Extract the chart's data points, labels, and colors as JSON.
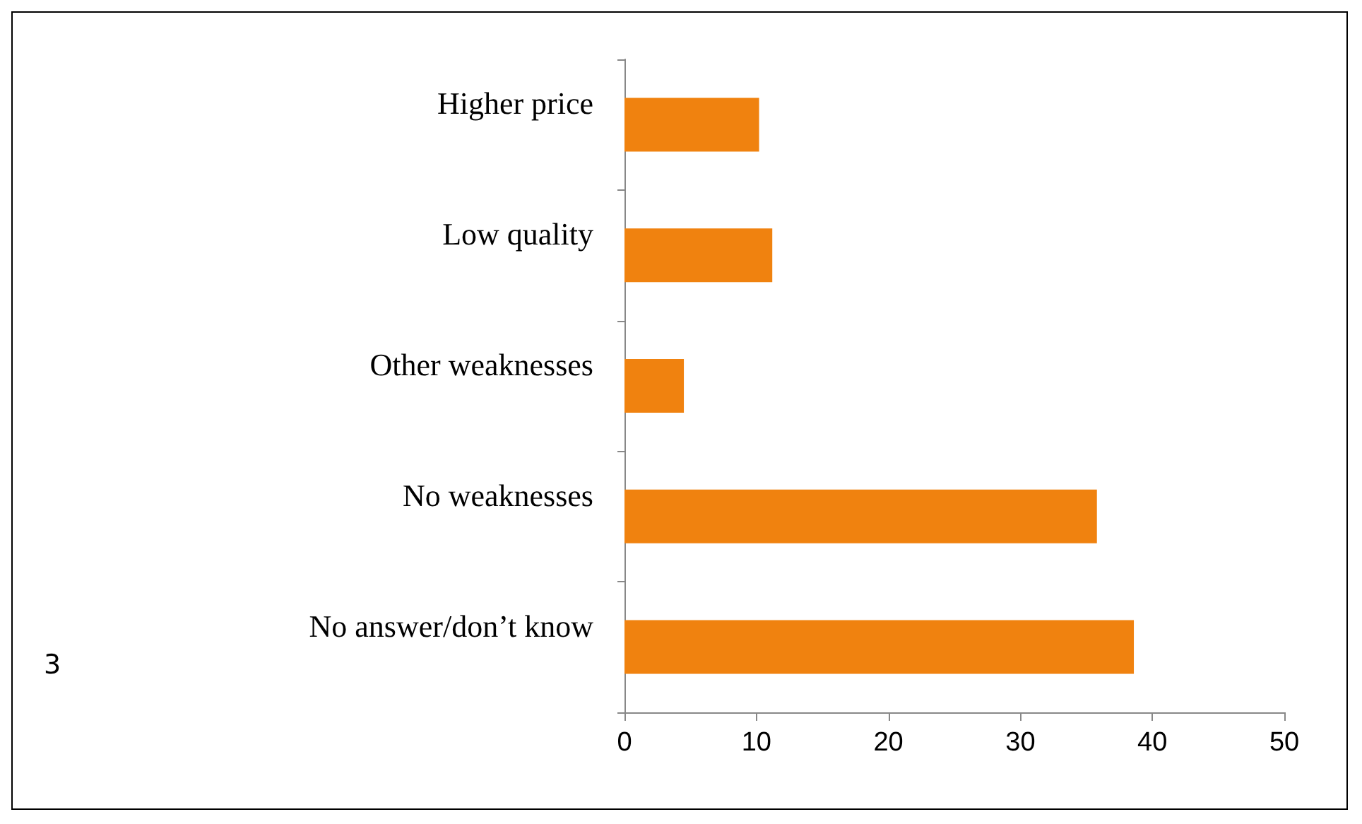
{
  "chart_data": {
    "type": "bar",
    "orientation": "horizontal",
    "categories": [
      "Higher price",
      "Low quality",
      "Other weaknesses",
      "No weaknesses",
      "No answer/don’t know"
    ],
    "values": [
      10.2,
      11.2,
      4.5,
      35.8,
      38.6
    ],
    "color": "#f0820f",
    "xlim": [
      0,
      50
    ],
    "xticks": [
      0,
      10,
      20,
      30,
      40,
      50
    ],
    "grid": false,
    "annotations": [
      "3"
    ]
  }
}
